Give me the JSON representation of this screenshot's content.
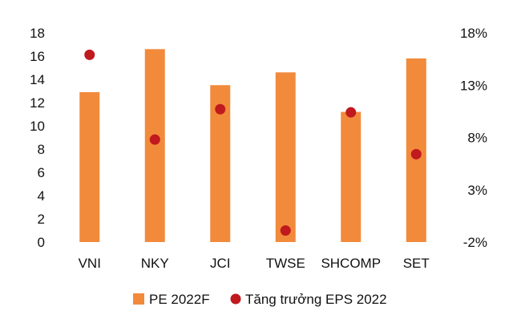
{
  "chart_data": {
    "type": "bar",
    "categories": [
      "VNI",
      "NKY",
      "JCI",
      "TWSE",
      "SHCOMP",
      "SET"
    ],
    "series": [
      {
        "name": "PE 2022F",
        "type": "bar",
        "axis": "left",
        "color": "#F28A3B",
        "values": [
          12.9,
          16.6,
          13.5,
          14.6,
          11.2,
          15.8
        ]
      },
      {
        "name": "Tăng trưởng EPS 2022",
        "type": "scatter",
        "axis": "right",
        "color": "#C0191E",
        "values": [
          15.9,
          7.8,
          10.7,
          -0.9,
          10.4,
          6.4
        ]
      }
    ],
    "y_left": {
      "min": 0,
      "max": 18,
      "step": 2,
      "ticks": [
        "0",
        "2",
        "4",
        "6",
        "8",
        "10",
        "12",
        "14",
        "16",
        "18"
      ]
    },
    "y_right": {
      "min": -2,
      "max": 18,
      "step": 5,
      "unit": "%",
      "ticks": [
        "-2%",
        "3%",
        "8%",
        "13%",
        "18%"
      ]
    },
    "grid": false,
    "legend_position": "bottom"
  }
}
